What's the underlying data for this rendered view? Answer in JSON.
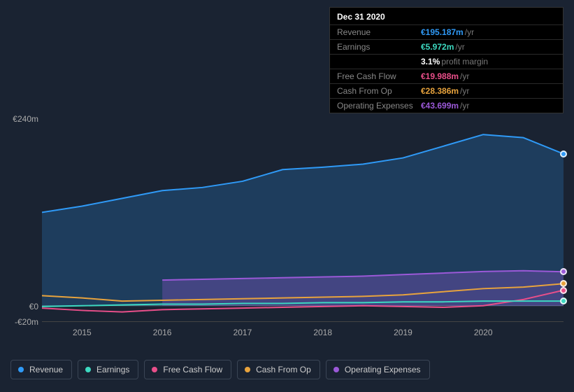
{
  "tooltip": {
    "date": "Dec 31 2020",
    "rows": [
      {
        "label": "Revenue",
        "value": "€195.187m",
        "unit": "/yr",
        "color": "#2f9af7"
      },
      {
        "label": "Earnings",
        "value": "€5.972m",
        "unit": "/yr",
        "color": "#3dd9c1"
      },
      {
        "label": "",
        "value": "3.1%",
        "unit": "profit margin",
        "color": "#ffffff"
      },
      {
        "label": "Free Cash Flow",
        "value": "€19.988m",
        "unit": "/yr",
        "color": "#e94f8a"
      },
      {
        "label": "Cash From Op",
        "value": "€28.386m",
        "unit": "/yr",
        "color": "#e8a33d"
      },
      {
        "label": "Operating Expenses",
        "value": "€43.699m",
        "unit": "/yr",
        "color": "#9b59d8"
      }
    ]
  },
  "chart": {
    "type": "area",
    "background": "#1a2332",
    "ymin": -20,
    "ymax": 240,
    "y_ticks": [
      {
        "v": 240,
        "label": "€240m"
      },
      {
        "v": 0,
        "label": "€0"
      },
      {
        "v": -20,
        "label": "-€20m"
      }
    ],
    "xmin": 2014.5,
    "xmax": 2021.0,
    "x_ticks": [
      2015,
      2016,
      2017,
      2018,
      2019,
      2020
    ],
    "marker_x": 2021.0,
    "series": [
      {
        "name": "Revenue",
        "color": "#2f9af7",
        "fill": "rgba(47,154,247,0.22)",
        "width": 2,
        "points": [
          [
            2014.5,
            120
          ],
          [
            2015.0,
            128
          ],
          [
            2015.5,
            138
          ],
          [
            2016.0,
            148
          ],
          [
            2016.5,
            152
          ],
          [
            2017.0,
            160
          ],
          [
            2017.5,
            175
          ],
          [
            2018.0,
            178
          ],
          [
            2018.5,
            182
          ],
          [
            2019.0,
            190
          ],
          [
            2019.5,
            205
          ],
          [
            2020.0,
            220
          ],
          [
            2020.5,
            216
          ],
          [
            2021.0,
            195.187
          ]
        ]
      },
      {
        "name": "Operating Expenses",
        "color": "#9b59d8",
        "fill": "rgba(155,89,216,0.30)",
        "width": 2,
        "start_x": 2016.0,
        "points": [
          [
            2016.0,
            33
          ],
          [
            2016.5,
            34
          ],
          [
            2017.0,
            35
          ],
          [
            2017.5,
            36
          ],
          [
            2018.0,
            37
          ],
          [
            2018.5,
            38
          ],
          [
            2019.0,
            40
          ],
          [
            2019.5,
            42
          ],
          [
            2020.0,
            44
          ],
          [
            2020.5,
            45
          ],
          [
            2021.0,
            43.699
          ]
        ]
      },
      {
        "name": "Cash From Op",
        "color": "#e8a33d",
        "fill": "none",
        "width": 2,
        "points": [
          [
            2014.5,
            13
          ],
          [
            2015.0,
            10
          ],
          [
            2015.5,
            6
          ],
          [
            2016.0,
            7
          ],
          [
            2016.5,
            8
          ],
          [
            2017.0,
            9
          ],
          [
            2017.5,
            10
          ],
          [
            2018.0,
            11
          ],
          [
            2018.5,
            12
          ],
          [
            2019.0,
            14
          ],
          [
            2019.5,
            18
          ],
          [
            2020.0,
            22
          ],
          [
            2020.5,
            24
          ],
          [
            2021.0,
            28.386
          ]
        ]
      },
      {
        "name": "Free Cash Flow",
        "color": "#e94f8a",
        "fill": "none",
        "width": 2,
        "points": [
          [
            2014.5,
            -3
          ],
          [
            2015.0,
            -6
          ],
          [
            2015.5,
            -8
          ],
          [
            2016.0,
            -5
          ],
          [
            2016.5,
            -4
          ],
          [
            2017.0,
            -3
          ],
          [
            2017.5,
            -2
          ],
          [
            2018.0,
            -1
          ],
          [
            2018.5,
            0
          ],
          [
            2019.0,
            -1
          ],
          [
            2019.5,
            -2
          ],
          [
            2020.0,
            0
          ],
          [
            2020.5,
            8
          ],
          [
            2021.0,
            19.988
          ]
        ]
      },
      {
        "name": "Earnings",
        "color": "#3dd9c1",
        "fill": "none",
        "width": 2,
        "points": [
          [
            2014.5,
            -1
          ],
          [
            2015.0,
            0
          ],
          [
            2015.5,
            1
          ],
          [
            2016.0,
            2
          ],
          [
            2016.5,
            2
          ],
          [
            2017.0,
            3
          ],
          [
            2017.5,
            3
          ],
          [
            2018.0,
            4
          ],
          [
            2018.5,
            4
          ],
          [
            2019.0,
            5
          ],
          [
            2019.5,
            5
          ],
          [
            2020.0,
            6
          ],
          [
            2020.5,
            6
          ],
          [
            2021.0,
            5.972
          ]
        ]
      }
    ]
  },
  "legend": [
    {
      "label": "Revenue",
      "color": "#2f9af7"
    },
    {
      "label": "Earnings",
      "color": "#3dd9c1"
    },
    {
      "label": "Free Cash Flow",
      "color": "#e94f8a"
    },
    {
      "label": "Cash From Op",
      "color": "#e8a33d"
    },
    {
      "label": "Operating Expenses",
      "color": "#9b59d8"
    }
  ]
}
